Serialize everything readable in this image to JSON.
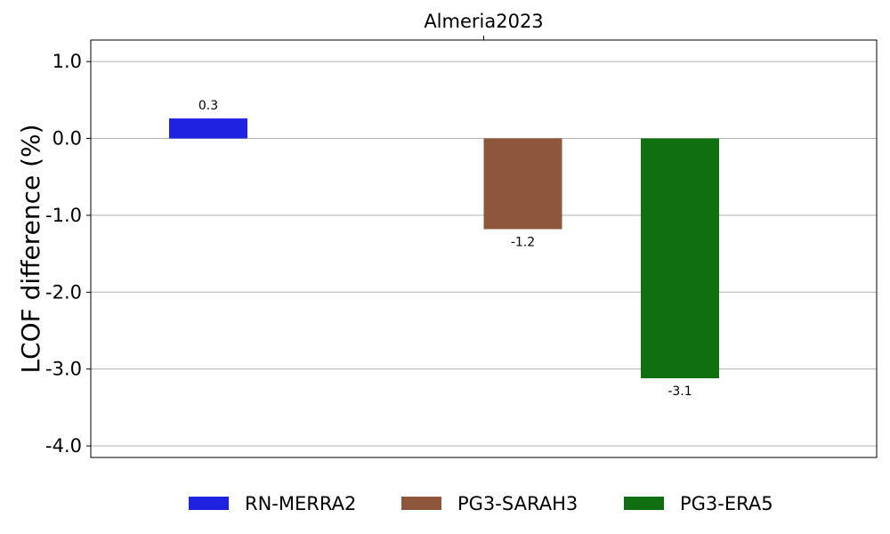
{
  "chart_data": {
    "type": "bar",
    "title": "Almeria2023",
    "xlabel": "",
    "ylabel": "LCOF difference (%)",
    "ylim": [
      -4.15,
      1.28
    ],
    "yticks": [
      1.0,
      0.0,
      -1.0,
      -2.0,
      -3.0,
      -4.0
    ],
    "ytick_labels": [
      "1.0",
      "0.0",
      "-1.0",
      "-2.0",
      "-3.0",
      "-4.0"
    ],
    "grid": "y",
    "legend_placement": "bottom-center",
    "series": [
      {
        "name": "RN-MERRA2",
        "value": 0.26,
        "label": "0.3",
        "color": "#1f22e0"
      },
      {
        "name": "PG3-SARAH3",
        "value": -1.18,
        "label": "-1.2",
        "color": "#8e563a"
      },
      {
        "name": "PG3-ERA5",
        "value": -3.12,
        "label": "-3.1",
        "color": "#107010"
      }
    ]
  }
}
